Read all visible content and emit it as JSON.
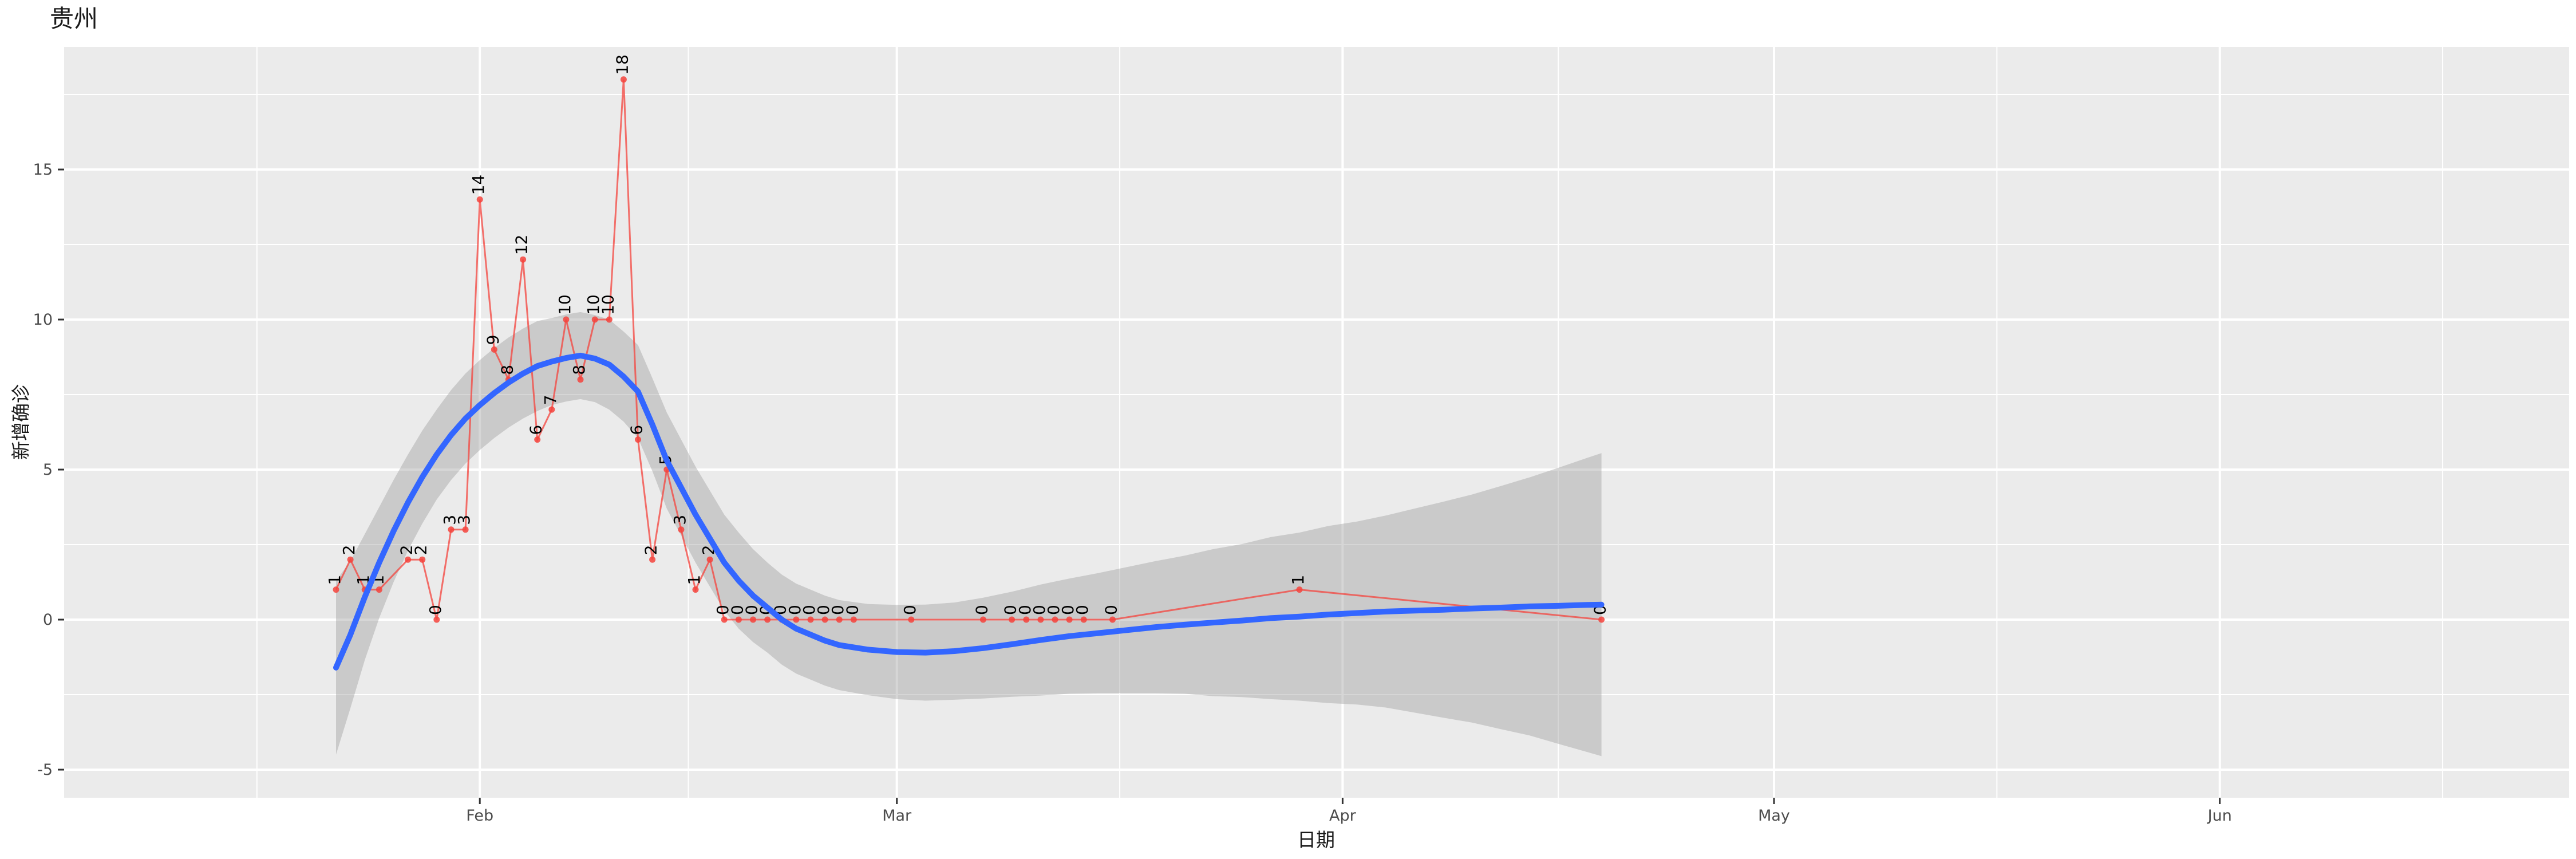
{
  "title": "贵州",
  "colors": {
    "panel_background": "#EBEBEB",
    "gridline": "#FFFFFF",
    "band_fill": "#999999",
    "band_opacity": 0.4,
    "data_line": "#F4433C",
    "data_point": "#F4433C",
    "smooth_line": "#3366FF",
    "tick_text": "#4D4D4D",
    "tick_mark": "#333333",
    "label_text": "#000000"
  },
  "chart_data": {
    "type": "line",
    "title": "贵州",
    "xlabel": "日期",
    "ylabel": "新增确诊",
    "legend": "none",
    "grid": "on",
    "x_axis": {
      "epoch": "2020-01-22",
      "tick_labels": [
        "Feb",
        "Mar",
        "Apr",
        "May",
        "Jun"
      ],
      "tick_days": [
        10,
        39,
        70,
        100,
        131
      ],
      "major_grid_days": [
        -21,
        10,
        39,
        70,
        100,
        131
      ],
      "minor_grid_days": [
        -5.5,
        24.5,
        54.5,
        85,
        115.5,
        146.5
      ]
    },
    "y_axis": {
      "tick_values": [
        -5,
        0,
        5,
        10,
        15
      ],
      "minor_grid_values": [
        -2.5,
        2.5,
        7.5,
        12.5,
        17.5
      ],
      "range": [
        -5.9,
        19.0
      ]
    },
    "series": [
      {
        "name": "daily_new_confirmed",
        "style": "line-point-label",
        "points": [
          [
            "2020-01-22",
            1
          ],
          [
            "2020-01-23",
            2
          ],
          [
            "2020-01-24",
            1
          ],
          [
            "2020-01-25",
            1
          ],
          [
            "2020-01-27",
            2
          ],
          [
            "2020-01-28",
            2
          ],
          [
            "2020-01-29",
            0
          ],
          [
            "2020-01-30",
            3
          ],
          [
            "2020-01-31",
            3
          ],
          [
            "2020-02-01",
            14
          ],
          [
            "2020-02-02",
            9
          ],
          [
            "2020-02-03",
            8
          ],
          [
            "2020-02-04",
            12
          ],
          [
            "2020-02-05",
            6
          ],
          [
            "2020-02-06",
            7
          ],
          [
            "2020-02-07",
            10
          ],
          [
            "2020-02-08",
            8
          ],
          [
            "2020-02-09",
            10
          ],
          [
            "2020-02-10",
            10
          ],
          [
            "2020-02-11",
            18
          ],
          [
            "2020-02-12",
            6
          ],
          [
            "2020-02-13",
            2
          ],
          [
            "2020-02-14",
            5
          ],
          [
            "2020-02-15",
            3
          ],
          [
            "2020-02-16",
            1
          ],
          [
            "2020-02-17",
            2
          ],
          [
            "2020-02-18",
            0
          ],
          [
            "2020-02-19",
            0
          ],
          [
            "2020-02-20",
            0
          ],
          [
            "2020-02-21",
            0
          ],
          [
            "2020-02-22",
            0
          ],
          [
            "2020-02-23",
            0
          ],
          [
            "2020-02-24",
            0
          ],
          [
            "2020-02-25",
            0
          ],
          [
            "2020-02-26",
            0
          ],
          [
            "2020-02-27",
            0
          ],
          [
            "2020-03-02",
            0
          ],
          [
            "2020-03-07",
            0
          ],
          [
            "2020-03-09",
            0
          ],
          [
            "2020-03-10",
            0
          ],
          [
            "2020-03-11",
            0
          ],
          [
            "2020-03-12",
            0
          ],
          [
            "2020-03-13",
            0
          ],
          [
            "2020-03-14",
            0
          ],
          [
            "2020-03-16",
            0
          ],
          [
            "2020-03-29",
            1
          ],
          [
            "2020-04-19",
            0
          ]
        ]
      },
      {
        "name": "loess_smooth_with_ci",
        "style": "smooth-band",
        "samples": [
          [
            0,
            -1.6,
            2.9
          ],
          [
            1,
            -0.5,
            2.45
          ],
          [
            2,
            0.75,
            2.1
          ],
          [
            3,
            1.9,
            1.85
          ],
          [
            4,
            2.95,
            1.7
          ],
          [
            5,
            3.9,
            1.6
          ],
          [
            6,
            4.75,
            1.55
          ],
          [
            7,
            5.5,
            1.5
          ],
          [
            8,
            6.15,
            1.5
          ],
          [
            9,
            6.7,
            1.5
          ],
          [
            10,
            7.15,
            1.5
          ],
          [
            11,
            7.55,
            1.5
          ],
          [
            12,
            7.9,
            1.5
          ],
          [
            13,
            8.2,
            1.5
          ],
          [
            14,
            8.45,
            1.5
          ],
          [
            15,
            8.6,
            1.45
          ],
          [
            16,
            8.72,
            1.45
          ],
          [
            17,
            8.8,
            1.45
          ],
          [
            18,
            8.7,
            1.45
          ],
          [
            19,
            8.5,
            1.5
          ],
          [
            20,
            8.1,
            1.5
          ],
          [
            21,
            7.6,
            1.55
          ],
          [
            22,
            6.5,
            1.55
          ],
          [
            23,
            5.3,
            1.6
          ],
          [
            24,
            4.4,
            1.6
          ],
          [
            25,
            3.5,
            1.6
          ],
          [
            26,
            2.7,
            1.6
          ],
          [
            27,
            1.9,
            1.6
          ],
          [
            28,
            1.3,
            1.6
          ],
          [
            29,
            0.8,
            1.55
          ],
          [
            30,
            0.4,
            1.5
          ],
          [
            31,
            0.0,
            1.5
          ],
          [
            32,
            -0.3,
            1.5
          ],
          [
            33,
            -0.5,
            1.5
          ],
          [
            34,
            -0.7,
            1.5
          ],
          [
            35,
            -0.85,
            1.5
          ],
          [
            37,
            -1.0,
            1.52
          ],
          [
            39,
            -1.08,
            1.57
          ],
          [
            41,
            -1.1,
            1.6
          ],
          [
            43,
            -1.05,
            1.62
          ],
          [
            45,
            -0.95,
            1.68
          ],
          [
            47,
            -0.82,
            1.75
          ],
          [
            49,
            -0.68,
            1.85
          ],
          [
            51,
            -0.55,
            1.92
          ],
          [
            53,
            -0.45,
            2.0
          ],
          [
            55,
            -0.35,
            2.1
          ],
          [
            57,
            -0.25,
            2.2
          ],
          [
            59,
            -0.17,
            2.3
          ],
          [
            61,
            -0.1,
            2.45
          ],
          [
            63,
            -0.03,
            2.55
          ],
          [
            65,
            0.05,
            2.7
          ],
          [
            67,
            0.1,
            2.8
          ],
          [
            69,
            0.17,
            2.95
          ],
          [
            71,
            0.22,
            3.05
          ],
          [
            73,
            0.27,
            3.2
          ],
          [
            75,
            0.3,
            3.4
          ],
          [
            77,
            0.33,
            3.6
          ],
          [
            79,
            0.37,
            3.8
          ],
          [
            81,
            0.4,
            4.05
          ],
          [
            83,
            0.44,
            4.3
          ],
          [
            85,
            0.46,
            4.6
          ],
          [
            87,
            0.49,
            4.9
          ],
          [
            88,
            0.5,
            5.05
          ]
        ]
      }
    ]
  }
}
